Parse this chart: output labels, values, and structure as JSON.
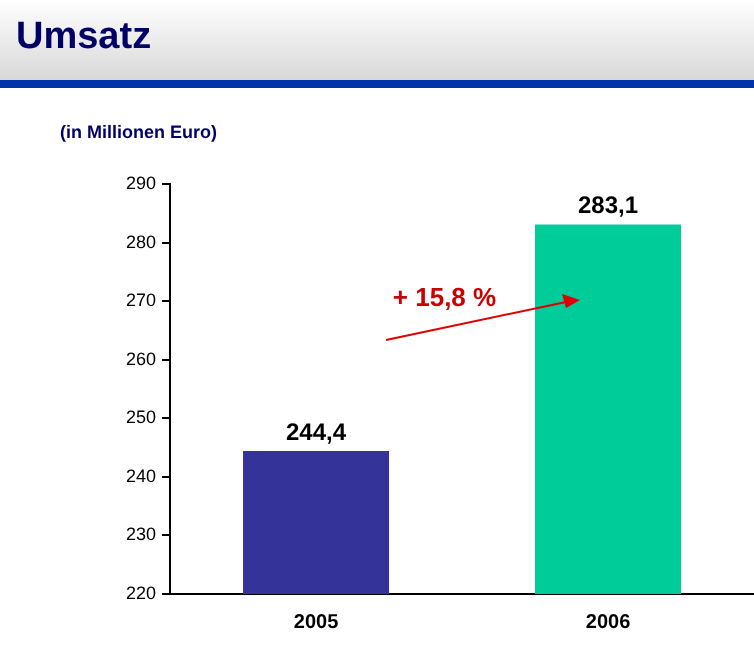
{
  "chart_data": {
    "type": "bar",
    "title": "Umsatz",
    "subtitle": "(in Millionen Euro)",
    "categories": [
      "2005",
      "2006"
    ],
    "values": [
      244.4,
      283.1
    ],
    "colors": [
      "#333399",
      "#00cc99"
    ],
    "value_labels": [
      "244,4",
      "283,1"
    ],
    "ylim": [
      220,
      290
    ],
    "yticks": [
      220,
      230,
      240,
      250,
      260,
      270,
      280,
      290
    ],
    "annotations": [
      "+ 15,8 %"
    ],
    "grid": false,
    "legend": false
  }
}
